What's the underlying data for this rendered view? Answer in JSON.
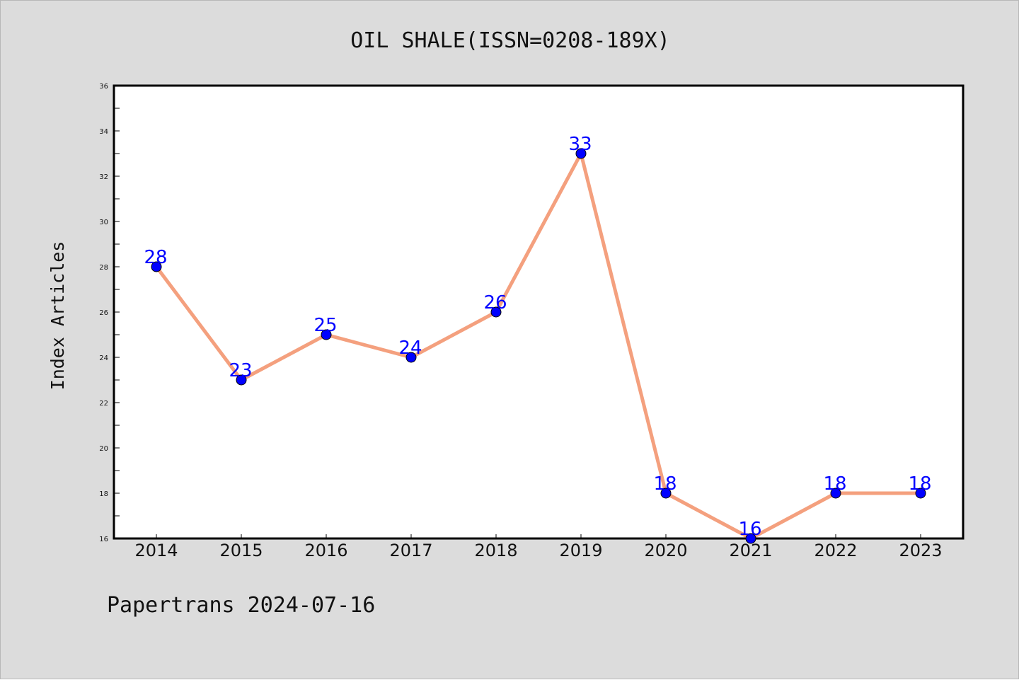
{
  "chart_data": {
    "type": "line",
    "title": "OIL SHALE(ISSN=0208-189X)",
    "xlabel": "",
    "ylabel": "Index Articles",
    "categories": [
      "2014",
      "2015",
      "2016",
      "2017",
      "2018",
      "2019",
      "2020",
      "2021",
      "2022",
      "2023"
    ],
    "series": [
      {
        "values": [
          28,
          23,
          25,
          24,
          26,
          33,
          18,
          16,
          18,
          18
        ]
      }
    ],
    "ylim": [
      16,
      36
    ],
    "yticks": [
      16,
      18,
      20,
      22,
      24,
      26,
      28,
      30,
      32,
      34,
      36
    ],
    "grid": false,
    "legend": "none",
    "data_labels": true,
    "colors": {
      "figure_background": "#dcdcdc",
      "plot_background": "#ffffff",
      "line": "#f4a07e",
      "marker": "#0000ff",
      "label": "#0000ff"
    }
  },
  "footer": {
    "text": "Papertrans 2024-07-16"
  }
}
